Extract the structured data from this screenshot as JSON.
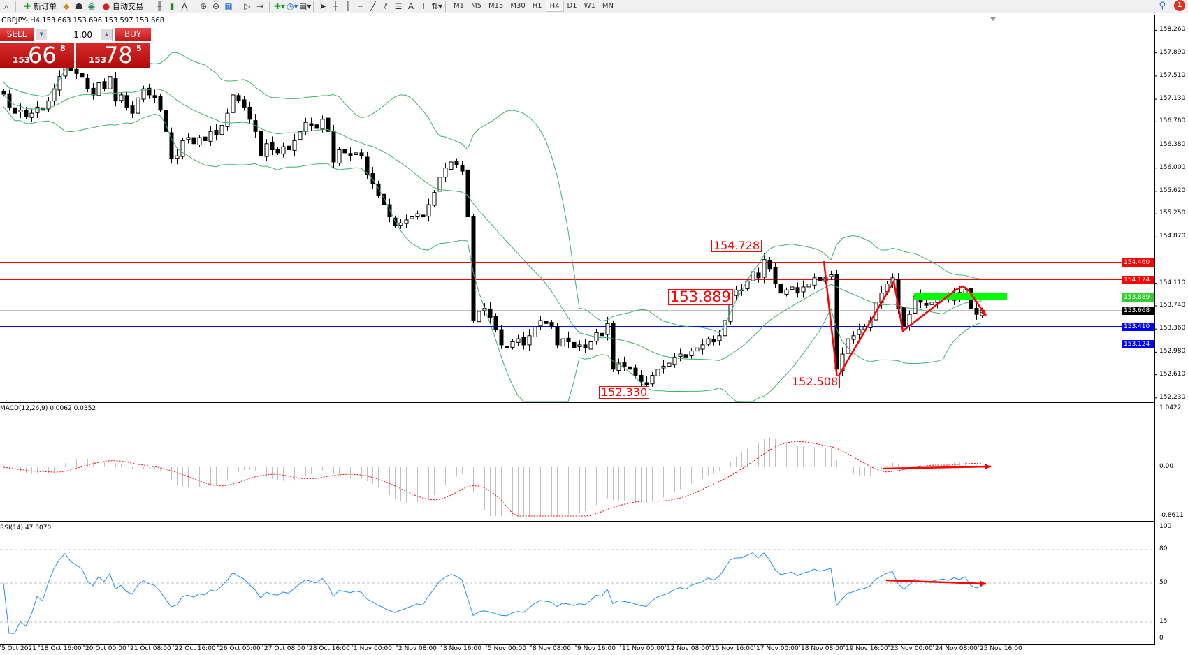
{
  "toolbar": {
    "new_order": "新订单",
    "auto_trading": "自动交易",
    "timeframes": [
      "M1",
      "M5",
      "M15",
      "M30",
      "H1",
      "H4",
      "D1",
      "W1",
      "MN"
    ],
    "active_timeframe": "H4",
    "notification_count": "1"
  },
  "chart": {
    "header": "GBPJPY-,H4  153.663 153.696 153.597 153.668",
    "symbol": "GBPJPY-",
    "timeframe": "H4"
  },
  "one_click": {
    "sell": "SELL",
    "buy": "BUY",
    "lot": "1.00",
    "sell_small": "153",
    "sell_big": "66",
    "sell_tiny": "8",
    "buy_small": "153",
    "buy_big": "78",
    "buy_tiny": "5"
  },
  "price_ticks": [
    "158.260",
    "157.890",
    "157.510",
    "157.130",
    "156.760",
    "156.380",
    "156.000",
    "155.620",
    "155.250",
    "154.870",
    "154.110",
    "153.740",
    "153.360",
    "152.980",
    "152.610",
    "152.230"
  ],
  "levels": [
    {
      "price": "154.460",
      "color": "#ff0000"
    },
    {
      "price": "154.174",
      "color": "#ff0000"
    },
    {
      "price": "153.889",
      "color": "#32cd32"
    },
    {
      "price": "153.668",
      "color": "#000000",
      "line": "#c0c0c0"
    },
    {
      "price": "153.410",
      "color": "#0000ff"
    },
    {
      "price": "153.124",
      "color": "#0000ff"
    }
  ],
  "annotations": {
    "high": "154.728",
    "mid": "153.889",
    "low1": "152.330",
    "low2": "152.508"
  },
  "macd": {
    "label": "MACD(12,26,9) 0.0062 0.0352",
    "max": "1.0422",
    "zero": "0.00",
    "min": "-0.8611"
  },
  "rsi": {
    "label": "RSI(14) 47.8070",
    "levels": [
      "100",
      "80",
      "50",
      "15",
      "0"
    ]
  },
  "time_labels": [
    "5 Oct 2021",
    "18 Oct 16:00",
    "20 Oct 00:00",
    "21 Oct 08:00",
    "22 Oct 16:00",
    "26 Oct 00:00",
    "27 Oct 08:00",
    "28 Oct 16:00",
    "1 Nov 00:00",
    "2 Nov 08:00",
    "3 Nov 16:00",
    "5 Nov 00:00",
    "8 Nov 08:00",
    "9 Nov 16:00",
    "11 Nov 00:00",
    "12 Nov 08:00",
    "15 Nov 16:00",
    "17 Nov 00:00",
    "18 Nov 08:00",
    "19 Nov 16:00",
    "23 Nov 00:00",
    "24 Nov 08:00",
    "25 Nov 16:00"
  ],
  "chart_data": {
    "type": "candlestick",
    "ylim": [
      152.23,
      158.26
    ],
    "closes": [
      157.21,
      157.0,
      156.9,
      156.95,
      156.85,
      156.9,
      157.0,
      156.95,
      157.1,
      157.3,
      157.5,
      157.7,
      157.6,
      157.55,
      157.5,
      157.3,
      157.2,
      157.4,
      157.3,
      157.5,
      157.1,
      157.2,
      157.0,
      156.9,
      157.15,
      157.3,
      157.2,
      157.15,
      156.95,
      156.6,
      156.15,
      156.2,
      156.45,
      156.5,
      156.4,
      156.5,
      156.45,
      156.6,
      156.55,
      156.7,
      156.9,
      157.2,
      157.1,
      157.0,
      156.8,
      156.6,
      156.2,
      156.4,
      156.3,
      156.25,
      156.35,
      156.3,
      156.45,
      156.6,
      156.75,
      156.7,
      156.65,
      156.8,
      156.6,
      156.1,
      156.3,
      156.25,
      156.2,
      156.25,
      156.2,
      155.9,
      155.75,
      155.55,
      155.4,
      155.2,
      155.05,
      155.1,
      155.15,
      155.2,
      155.25,
      155.2,
      155.4,
      155.6,
      155.85,
      156.0,
      156.1,
      156.05,
      155.95,
      155.2,
      153.5,
      153.65,
      153.7,
      153.55,
      153.35,
      153.1,
      153.05,
      153.15,
      153.2,
      153.1,
      153.25,
      153.4,
      153.5,
      153.45,
      153.4,
      153.1,
      153.2,
      153.15,
      153.05,
      153.1,
      153.05,
      153.15,
      153.3,
      153.25,
      153.45,
      152.7,
      152.8,
      152.75,
      152.7,
      152.6,
      152.5,
      152.45,
      152.6,
      152.7,
      152.75,
      152.8,
      152.9,
      152.95,
      152.9,
      153.0,
      153.05,
      153.1,
      153.2,
      153.15,
      153.25,
      153.5,
      153.9,
      154.0,
      154.0,
      154.15,
      154.3,
      154.2,
      154.5,
      154.35,
      154.1,
      153.95,
      154.0,
      154.05,
      153.95,
      154.05,
      154.1,
      154.2,
      154.15,
      154.2,
      154.25,
      152.7,
      152.95,
      153.2,
      153.25,
      153.35,
      153.4,
      153.5,
      153.8,
      153.95,
      154.1,
      154.2,
      153.7,
      153.4,
      153.6,
      153.9,
      153.8,
      153.75,
      153.8,
      153.85,
      153.9,
      153.85,
      153.95,
      153.9,
      154.0,
      153.7,
      153.6,
      153.668
    ]
  },
  "colors": {
    "bands": "#3cb371",
    "arrow": "#ff0000",
    "highlight": "#00ff00",
    "macd_hist": "#c0c0c0",
    "macd_signal": "#ff0000",
    "rsi": "#1e90ff"
  }
}
